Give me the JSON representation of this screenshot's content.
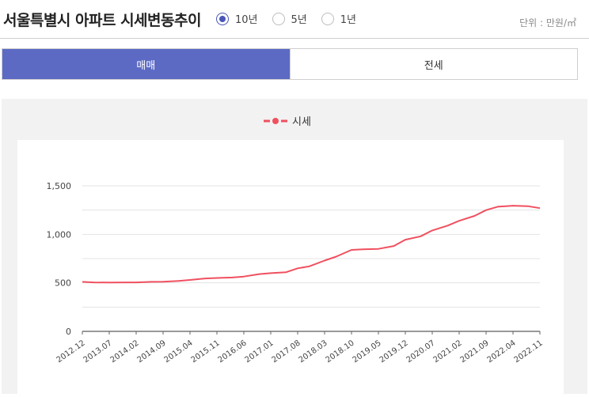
{
  "header": {
    "title": "서울특별시 아파트 시세변동추이",
    "unit_label": "단위 : 만원/㎡"
  },
  "period_options": [
    {
      "label": "10년",
      "selected": true
    },
    {
      "label": "5년",
      "selected": false
    },
    {
      "label": "1년",
      "selected": false
    }
  ],
  "tabs": [
    {
      "label": "매매",
      "active": true
    },
    {
      "label": "전세",
      "active": false
    }
  ],
  "colors": {
    "accent": "#5c6ac4",
    "series": "#f0505f",
    "radio": "#4a56b8"
  },
  "chart_data": {
    "type": "line",
    "title": "",
    "xlabel": "",
    "ylabel": "",
    "ylim": [
      0,
      1500
    ],
    "yticks": [
      0,
      500,
      1000,
      1500
    ],
    "ytick_labels": [
      "0",
      "500",
      "1,000",
      "1,500"
    ],
    "grid": true,
    "legend_position": "top-center",
    "x_tick_labels": [
      "2012.12",
      "2013.07",
      "2014.02",
      "2014.09",
      "2015.04",
      "2015.11",
      "2016.06",
      "2017.01",
      "2017.08",
      "2018.03",
      "2018.10",
      "2019.05",
      "2019.12",
      "2020.07",
      "2021.02",
      "2021.09",
      "2022.04",
      "2022.11"
    ],
    "series": [
      {
        "name": "시세",
        "x": [
          "2012.12",
          "2013.03",
          "2013.07",
          "2013.11",
          "2014.02",
          "2014.06",
          "2014.09",
          "2015.01",
          "2015.04",
          "2015.08",
          "2015.11",
          "2016.03",
          "2016.06",
          "2016.10",
          "2017.01",
          "2017.05",
          "2017.08",
          "2017.11",
          "2018.03",
          "2018.06",
          "2018.10",
          "2019.01",
          "2019.05",
          "2019.09",
          "2019.12",
          "2020.04",
          "2020.07",
          "2020.11",
          "2021.02",
          "2021.06",
          "2021.09",
          "2021.12",
          "2022.04",
          "2022.08",
          "2022.11"
        ],
        "values": [
          510,
          505,
          503,
          505,
          505,
          510,
          512,
          520,
          530,
          545,
          550,
          555,
          565,
          590,
          600,
          610,
          650,
          670,
          730,
          770,
          840,
          845,
          850,
          880,
          945,
          980,
          1040,
          1090,
          1140,
          1190,
          1250,
          1285,
          1295,
          1290,
          1270
        ]
      }
    ]
  }
}
